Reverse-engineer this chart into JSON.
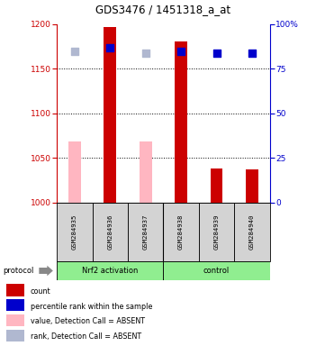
{
  "title": "GDS3476 / 1451318_a_at",
  "samples": [
    "GSM284935",
    "GSM284936",
    "GSM284937",
    "GSM284938",
    "GSM284939",
    "GSM284940"
  ],
  "ylim_left": [
    1000,
    1200
  ],
  "ylim_right": [
    0,
    100
  ],
  "yticks_left": [
    1000,
    1050,
    1100,
    1150,
    1200
  ],
  "yticks_right": [
    0,
    25,
    50,
    75,
    100
  ],
  "bar_values": [
    1068,
    1197,
    1068,
    1181,
    1038,
    1037
  ],
  "bar_colors": [
    "#FFB6C1",
    "#CC0000",
    "#FFB6C1",
    "#CC0000",
    "#CC0000",
    "#CC0000"
  ],
  "rank_values_pct": [
    85,
    87,
    84,
    85,
    84,
    84
  ],
  "rank_colors": [
    "#B0B8D0",
    "#0000CC",
    "#B0B8D0",
    "#0000CC",
    "#0000CC",
    "#0000CC"
  ],
  "bar_width": 0.35,
  "rank_size": 28,
  "left_axis_color": "#CC0000",
  "right_axis_color": "#0000CC",
  "group_split": 3,
  "group1_label": "Nrf2 activation",
  "group2_label": "control",
  "group_color": "#90EE90",
  "legend_items": [
    {
      "label": "count",
      "color": "#CC0000"
    },
    {
      "label": "percentile rank within the sample",
      "color": "#0000CC"
    },
    {
      "label": "value, Detection Call = ABSENT",
      "color": "#FFB6C1"
    },
    {
      "label": "rank, Detection Call = ABSENT",
      "color": "#B0B8D0"
    }
  ],
  "protocol_label": "protocol"
}
